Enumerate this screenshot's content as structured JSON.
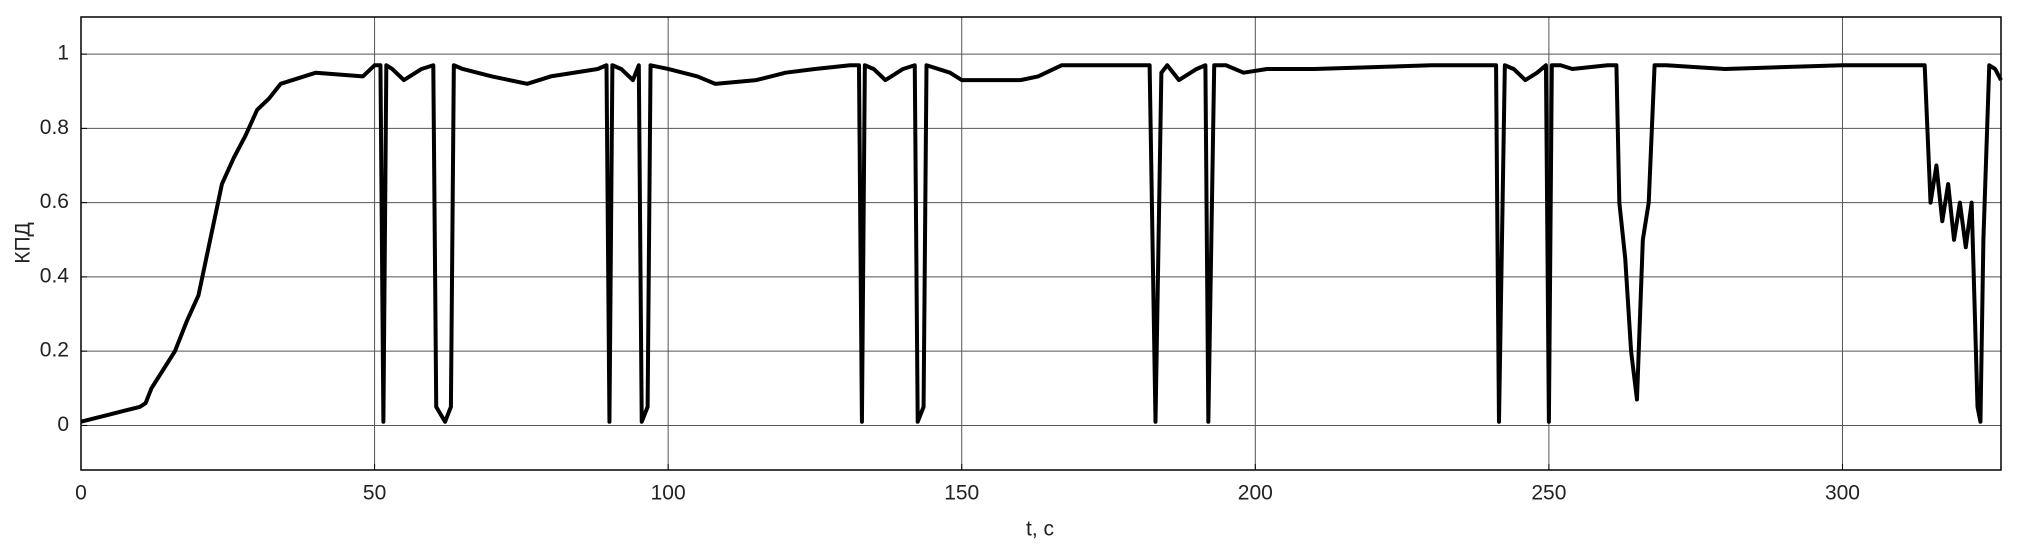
{
  "chart_data": {
    "type": "line",
    "xlabel": "t, с",
    "ylabel": "КПД",
    "xlim": [
      0,
      327
    ],
    "ylim": [
      -0.12,
      1.1
    ],
    "xticks": [
      0,
      50,
      100,
      150,
      200,
      250,
      300
    ],
    "yticks": [
      0,
      0.2,
      0.4,
      0.6,
      0.8,
      1
    ],
    "grid": true,
    "series": [
      {
        "color": "#000000",
        "x": [
          0,
          5,
          10,
          11,
          12,
          14,
          16,
          18,
          20,
          22,
          24,
          26,
          28,
          30,
          32,
          34,
          40,
          48,
          50,
          51,
          51.5,
          52,
          53,
          55,
          58,
          60,
          60.5,
          62,
          63,
          63.5,
          65,
          70,
          76,
          80,
          88,
          89.5,
          90,
          90.5,
          92,
          94,
          95,
          95.5,
          96.5,
          97,
          100,
          105,
          108,
          115,
          120,
          125,
          131,
          132.5,
          133,
          133.5,
          135,
          137,
          140,
          142,
          142.5,
          143.5,
          144,
          148,
          150,
          160,
          163,
          167,
          175,
          182,
          183,
          184,
          185,
          187,
          190,
          191.5,
          192,
          193,
          195,
          198,
          202,
          210,
          230,
          240,
          241,
          241.5,
          242.5,
          244,
          246,
          248,
          249.5,
          250,
          250.5,
          252,
          254,
          260,
          261.5,
          262,
          263,
          264,
          265,
          266,
          267,
          268,
          270,
          280,
          300,
          314,
          315,
          316,
          317,
          318,
          319,
          320,
          321,
          322,
          323,
          323.5,
          324,
          325,
          326,
          327
        ],
        "values": [
          0.01,
          0.03,
          0.05,
          0.06,
          0.1,
          0.15,
          0.2,
          0.28,
          0.35,
          0.5,
          0.65,
          0.72,
          0.78,
          0.85,
          0.88,
          0.92,
          0.95,
          0.94,
          0.97,
          0.97,
          0.01,
          0.97,
          0.96,
          0.93,
          0.96,
          0.97,
          0.05,
          0.01,
          0.05,
          0.97,
          0.96,
          0.94,
          0.92,
          0.94,
          0.96,
          0.97,
          0.01,
          0.97,
          0.96,
          0.93,
          0.97,
          0.01,
          0.05,
          0.97,
          0.96,
          0.94,
          0.92,
          0.93,
          0.95,
          0.96,
          0.97,
          0.97,
          0.01,
          0.97,
          0.96,
          0.93,
          0.96,
          0.97,
          0.01,
          0.05,
          0.97,
          0.95,
          0.93,
          0.93,
          0.94,
          0.97,
          0.97,
          0.97,
          0.01,
          0.95,
          0.97,
          0.93,
          0.96,
          0.97,
          0.01,
          0.97,
          0.97,
          0.95,
          0.96,
          0.96,
          0.97,
          0.97,
          0.97,
          0.01,
          0.97,
          0.96,
          0.93,
          0.95,
          0.97,
          0.01,
          0.97,
          0.97,
          0.96,
          0.97,
          0.97,
          0.6,
          0.45,
          0.2,
          0.07,
          0.5,
          0.6,
          0.97,
          0.97,
          0.96,
          0.97,
          0.97,
          0.6,
          0.7,
          0.55,
          0.65,
          0.5,
          0.6,
          0.48,
          0.6,
          0.05,
          0.01,
          0.5,
          0.97,
          0.96,
          0.93
        ]
      }
    ]
  }
}
